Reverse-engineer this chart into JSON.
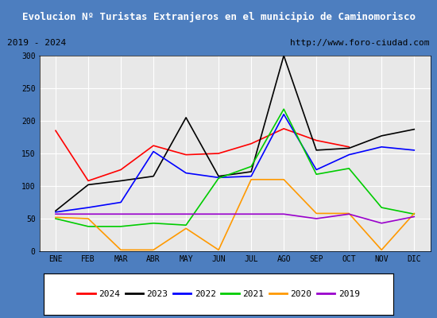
{
  "title": "Evolucion Nº Turistas Extranjeros en el municipio de Caminomorisco",
  "subtitle_left": "2019 - 2024",
  "subtitle_right": "http://www.foro-ciudad.com",
  "months": [
    "ENE",
    "FEB",
    "MAR",
    "ABR",
    "MAY",
    "JUN",
    "JUL",
    "AGO",
    "SEP",
    "OCT",
    "NOV",
    "DIC"
  ],
  "series": {
    "2024": [
      185,
      108,
      125,
      162,
      148,
      150,
      165,
      188,
      170,
      160,
      null,
      null
    ],
    "2023": [
      62,
      102,
      108,
      115,
      205,
      115,
      122,
      300,
      155,
      158,
      177,
      187
    ],
    "2022": [
      60,
      67,
      75,
      153,
      120,
      113,
      115,
      210,
      125,
      148,
      160,
      155
    ],
    "2021": [
      50,
      38,
      38,
      43,
      40,
      112,
      130,
      218,
      118,
      127,
      67,
      57
    ],
    "2020": [
      52,
      50,
      2,
      2,
      35,
      2,
      110,
      110,
      58,
      58,
      2,
      58
    ],
    "2019": [
      57,
      57,
      57,
      57,
      57,
      57,
      57,
      57,
      50,
      57,
      43,
      53
    ]
  },
  "colors": {
    "2024": "#ff0000",
    "2023": "#000000",
    "2022": "#0000ff",
    "2021": "#00cc00",
    "2020": "#ff9900",
    "2019": "#9900cc"
  },
  "ylim": [
    0,
    300
  ],
  "yticks": [
    0,
    50,
    100,
    150,
    200,
    250,
    300
  ],
  "title_bg": "#4d7ebf",
  "title_color": "#ffffff",
  "plot_bg": "#e8e8e8",
  "grid_color": "#ffffff",
  "border_color": "#4d7ebf",
  "subtitle_bg": "#d4d0c8"
}
